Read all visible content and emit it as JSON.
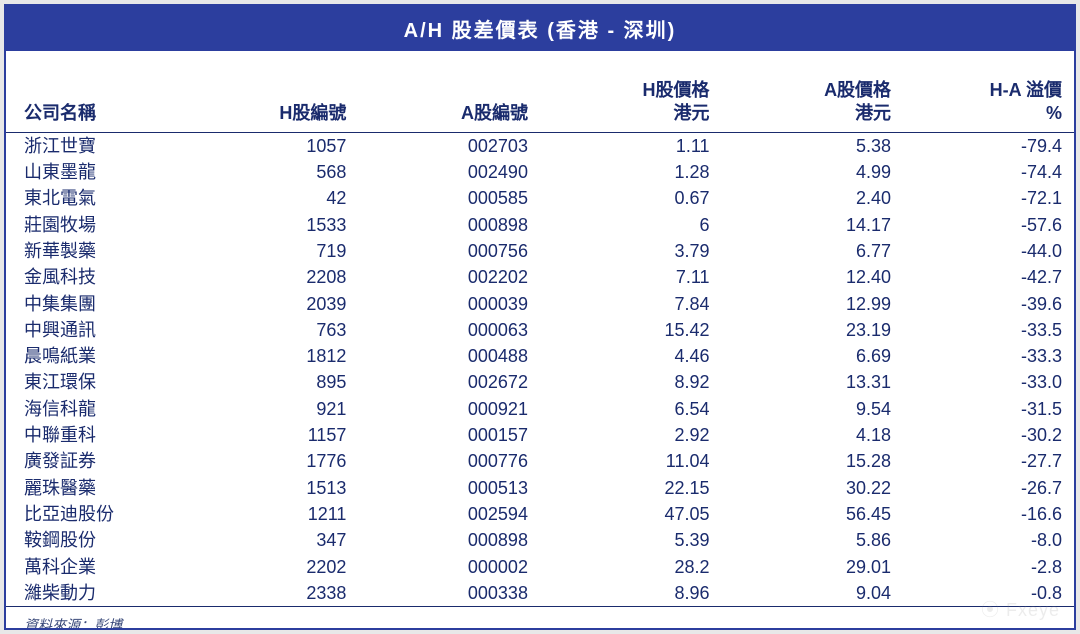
{
  "title": "A/H 股差價表 (香港 - 深圳)",
  "columns": {
    "name": {
      "l1": "公司名稱",
      "l2": ""
    },
    "hcode": {
      "l1": "H股編號",
      "l2": ""
    },
    "acode": {
      "l1": "A股編號",
      "l2": ""
    },
    "hprice": {
      "l1": "H股價格",
      "l2": "港元"
    },
    "aprice": {
      "l1": "A股價格",
      "l2": "港元"
    },
    "premium": {
      "l1": "H-A 溢價",
      "l2": "%"
    }
  },
  "rows": [
    {
      "name": "浙江世寶",
      "hcode": "1057",
      "acode": "002703",
      "hprice": "1.11",
      "aprice": "5.38",
      "premium": "-79.4"
    },
    {
      "name": "山東墨龍",
      "hcode": "568",
      "acode": "002490",
      "hprice": "1.28",
      "aprice": "4.99",
      "premium": "-74.4"
    },
    {
      "name": "東北電氣",
      "hcode": "42",
      "acode": "000585",
      "hprice": "0.67",
      "aprice": "2.40",
      "premium": "-72.1"
    },
    {
      "name": "莊園牧場",
      "hcode": "1533",
      "acode": "000898",
      "hprice": "6",
      "aprice": "14.17",
      "premium": "-57.6"
    },
    {
      "name": "新華製藥",
      "hcode": "719",
      "acode": "000756",
      "hprice": "3.79",
      "aprice": "6.77",
      "premium": "-44.0"
    },
    {
      "name": "金風科技",
      "hcode": "2208",
      "acode": "002202",
      "hprice": "7.11",
      "aprice": "12.40",
      "premium": "-42.7"
    },
    {
      "name": "中集集團",
      "hcode": "2039",
      "acode": "000039",
      "hprice": "7.84",
      "aprice": "12.99",
      "premium": "-39.6"
    },
    {
      "name": "中興通訊",
      "hcode": "763",
      "acode": "000063",
      "hprice": "15.42",
      "aprice": "23.19",
      "premium": "-33.5"
    },
    {
      "name": "晨鳴紙業",
      "hcode": "1812",
      "acode": "000488",
      "hprice": "4.46",
      "aprice": "6.69",
      "premium": "-33.3"
    },
    {
      "name": "東江環保",
      "hcode": "895",
      "acode": "002672",
      "hprice": "8.92",
      "aprice": "13.31",
      "premium": "-33.0"
    },
    {
      "name": "海信科龍",
      "hcode": "921",
      "acode": "000921",
      "hprice": "6.54",
      "aprice": "9.54",
      "premium": "-31.5"
    },
    {
      "name": "中聯重科",
      "hcode": "1157",
      "acode": "000157",
      "hprice": "2.92",
      "aprice": "4.18",
      "premium": "-30.2"
    },
    {
      "name": "廣發証券",
      "hcode": "1776",
      "acode": "000776",
      "hprice": "11.04",
      "aprice": "15.28",
      "premium": "-27.7"
    },
    {
      "name": "麗珠醫藥",
      "hcode": "1513",
      "acode": "000513",
      "hprice": "22.15",
      "aprice": "30.22",
      "premium": "-26.7"
    },
    {
      "name": "比亞迪股份",
      "hcode": "1211",
      "acode": "002594",
      "hprice": "47.05",
      "aprice": "56.45",
      "premium": "-16.6"
    },
    {
      "name": "鞍鋼股份",
      "hcode": "347",
      "acode": "000898",
      "hprice": "5.39",
      "aprice": "5.86",
      "premium": "-8.0"
    },
    {
      "name": "萬科企業",
      "hcode": "2202",
      "acode": "000002",
      "hprice": "28.2",
      "aprice": "29.01",
      "premium": "-2.8"
    },
    {
      "name": "濰柴動力",
      "hcode": "2338",
      "acode": "000338",
      "hprice": "8.96",
      "aprice": "9.04",
      "premium": "-0.8"
    }
  ],
  "footer": "資料來源：彭博",
  "style": {
    "title_bg": "#2c3e9e",
    "title_color": "#ffffff",
    "text_color": "#1a2b6d",
    "border_color": "#2c3e9e",
    "background": "#ffffff",
    "title_fontsize": 20,
    "body_fontsize": 18,
    "header_fontsize": 18
  }
}
